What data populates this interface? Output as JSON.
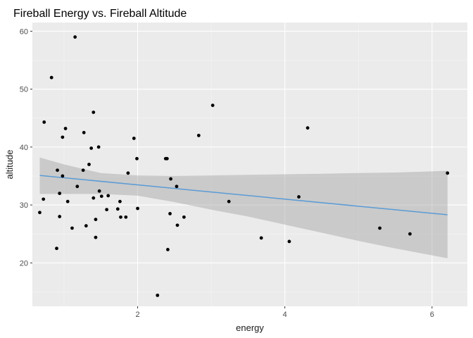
{
  "chart_data": {
    "type": "scatter",
    "title": "Fireball Energy vs. Fireball Altitude",
    "xlabel": "energy",
    "ylabel": "altitude",
    "xlim": [
      0.57,
      6.48
    ],
    "ylim": [
      12.5,
      61.5
    ],
    "x_major_ticks": [
      2,
      4,
      6
    ],
    "x_minor_ticks": [
      1,
      3,
      5
    ],
    "y_major_ticks": [
      20,
      30,
      40,
      50,
      60
    ],
    "y_minor_ticks": [
      15,
      25,
      35,
      45,
      55
    ],
    "grid": true,
    "points": [
      {
        "x": 0.67,
        "y": 28.7
      },
      {
        "x": 0.72,
        "y": 31.0
      },
      {
        "x": 0.73,
        "y": 44.3
      },
      {
        "x": 0.83,
        "y": 52.0
      },
      {
        "x": 0.9,
        "y": 22.5
      },
      {
        "x": 0.91,
        "y": 36.0
      },
      {
        "x": 0.94,
        "y": 32.0
      },
      {
        "x": 0.94,
        "y": 28.0
      },
      {
        "x": 0.98,
        "y": 35.0
      },
      {
        "x": 0.98,
        "y": 41.7
      },
      {
        "x": 1.02,
        "y": 43.2
      },
      {
        "x": 1.05,
        "y": 30.6
      },
      {
        "x": 1.11,
        "y": 26.0
      },
      {
        "x": 1.15,
        "y": 59.0
      },
      {
        "x": 1.18,
        "y": 33.2
      },
      {
        "x": 1.26,
        "y": 36.0
      },
      {
        "x": 1.27,
        "y": 42.5
      },
      {
        "x": 1.3,
        "y": 26.4
      },
      {
        "x": 1.34,
        "y": 37.0
      },
      {
        "x": 1.37,
        "y": 39.8
      },
      {
        "x": 1.4,
        "y": 46.0
      },
      {
        "x": 1.4,
        "y": 31.2
      },
      {
        "x": 1.43,
        "y": 27.5
      },
      {
        "x": 1.43,
        "y": 24.4
      },
      {
        "x": 1.47,
        "y": 40.0
      },
      {
        "x": 1.48,
        "y": 32.4
      },
      {
        "x": 1.51,
        "y": 31.5
      },
      {
        "x": 1.58,
        "y": 29.2
      },
      {
        "x": 1.6,
        "y": 31.6
      },
      {
        "x": 1.73,
        "y": 29.3
      },
      {
        "x": 1.76,
        "y": 30.6
      },
      {
        "x": 1.77,
        "y": 27.9
      },
      {
        "x": 1.84,
        "y": 27.9
      },
      {
        "x": 1.87,
        "y": 35.5
      },
      {
        "x": 1.95,
        "y": 41.5
      },
      {
        "x": 1.99,
        "y": 38.0
      },
      {
        "x": 2.0,
        "y": 29.4
      },
      {
        "x": 2.27,
        "y": 14.4
      },
      {
        "x": 2.38,
        "y": 38.0
      },
      {
        "x": 2.4,
        "y": 38.0
      },
      {
        "x": 2.41,
        "y": 22.3
      },
      {
        "x": 2.44,
        "y": 28.5
      },
      {
        "x": 2.45,
        "y": 34.5
      },
      {
        "x": 2.53,
        "y": 33.2
      },
      {
        "x": 2.54,
        "y": 26.5
      },
      {
        "x": 2.63,
        "y": 27.9
      },
      {
        "x": 2.83,
        "y": 42.0
      },
      {
        "x": 3.02,
        "y": 47.2
      },
      {
        "x": 3.24,
        "y": 30.6
      },
      {
        "x": 3.68,
        "y": 24.3
      },
      {
        "x": 4.06,
        "y": 23.7
      },
      {
        "x": 4.19,
        "y": 31.4
      },
      {
        "x": 4.31,
        "y": 43.3
      },
      {
        "x": 5.29,
        "y": 26.0
      },
      {
        "x": 5.7,
        "y": 25.0
      },
      {
        "x": 6.21,
        "y": 35.5
      }
    ],
    "fit_line": {
      "x": [
        0.67,
        6.21
      ],
      "y": [
        35.1,
        28.3
      ]
    },
    "confidence_band": {
      "x": [
        0.67,
        1.0,
        1.5,
        2.0,
        2.5,
        3.0,
        3.5,
        4.0,
        4.5,
        5.0,
        5.5,
        6.0,
        6.21
      ],
      "upper": [
        38.2,
        37.0,
        35.5,
        35.1,
        35.0,
        35.1,
        35.2,
        35.3,
        35.4,
        35.5,
        35.6,
        35.8,
        35.9
      ],
      "lower": [
        31.9,
        31.9,
        31.9,
        31.6,
        30.5,
        29.2,
        28.0,
        26.6,
        25.2,
        23.8,
        22.5,
        21.3,
        20.8
      ]
    },
    "colors": {
      "panel": "#ebebeb",
      "grid_major": "#ffffff",
      "grid_minor": "#f5f5f5",
      "point": "#000000",
      "fit_line": "#5b9bd5",
      "band": "#999999"
    }
  }
}
